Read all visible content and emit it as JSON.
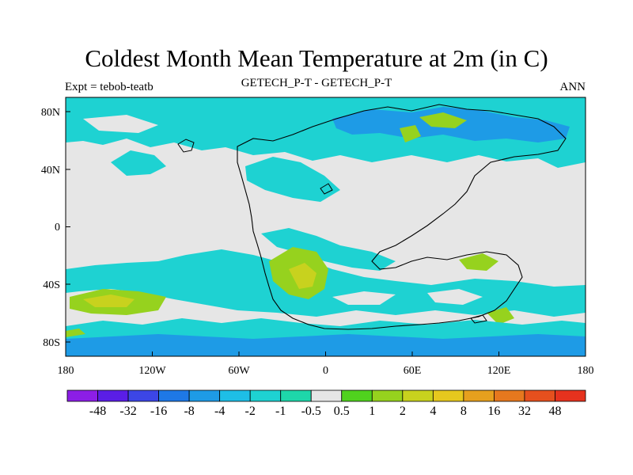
{
  "title": "Coldest Month Mean Temperature at 2m (in C)",
  "left_label": "Expt = tebob-teatb",
  "center_label": "GETECH_P-T - GETECH_P-T",
  "right_label": "ANN",
  "lon_ticks": [
    "180",
    "120W",
    "60W",
    "0",
    "60E",
    "120E",
    "180"
  ],
  "lat_ticks": [
    "80N",
    "40N",
    "0",
    "40S",
    "80S"
  ],
  "colorbar": {
    "labels": [
      "-48",
      "-32",
      "-16",
      "-8",
      "-4",
      "-2",
      "-1",
      "-0.5",
      "0.5",
      "1",
      "2",
      "4",
      "8",
      "16",
      "32",
      "48"
    ],
    "colors": [
      "#8c1ee6",
      "#5a1ee6",
      "#3c46e6",
      "#1e78e6",
      "#1e9be6",
      "#1ebee6",
      "#1ed2d2",
      "#1ed7aa",
      "#e6e6e6",
      "#50d21e",
      "#96d21e",
      "#c8d21e",
      "#e6c81e",
      "#e6a01e",
      "#e6781e",
      "#e6501e",
      "#e6321e"
    ]
  }
}
